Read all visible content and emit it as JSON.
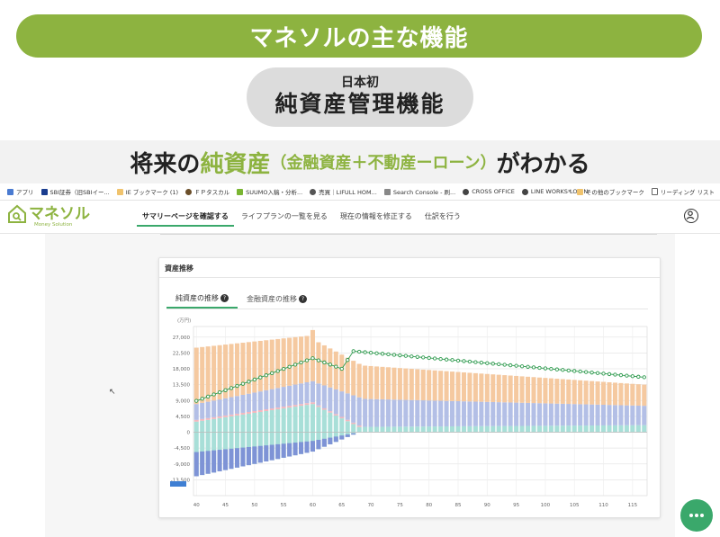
{
  "banner": {
    "title": "マネソルの主な機能"
  },
  "pill": {
    "small": "日本初",
    "big": "純資産管理機能"
  },
  "headline": {
    "pre": "将来の",
    "highlight": "純資産",
    "paren": "（金融資産＋不動産ーローン）",
    "post": "がわかる"
  },
  "bookmarks": {
    "items": [
      {
        "label": "アプリ",
        "color": "#4a7bd1"
      },
      {
        "label": "SBI証券（旧SBIイー...",
        "color": "#1a3d8f"
      },
      {
        "label": "IE ブックマーク (1)",
        "color": "#f0c36d"
      },
      {
        "label": "ＦＰタスカル",
        "color": "#6b4f2a"
      },
      {
        "label": "SUUMO入稿・分析...",
        "color": "#7ab532"
      },
      {
        "label": "売買｜LIFULL HOM...",
        "color": "#555555"
      },
      {
        "label": "Search Console - 刷...",
        "color": "#888888"
      },
      {
        "label": "CROSS OFFICE",
        "color": "#444444"
      },
      {
        "label": "LINE WORKS LOGIN",
        "color": "#444444"
      }
    ],
    "right": [
      {
        "label": "その他のブックマーク",
        "color": "#f0c36d"
      },
      {
        "label": "リーディング リスト",
        "color": "#666666"
      }
    ],
    "overflow": "»"
  },
  "app": {
    "logo_name": "マネソル",
    "logo_sub": "Money Solution"
  },
  "nav": {
    "items": [
      "サマリーページを確認する",
      "ライフプランの一覧を見る",
      "現在の情報を修正する",
      "仕訳を行う"
    ]
  },
  "card": {
    "title": "資産推移"
  },
  "tabs": [
    {
      "label": "純資産の推移",
      "help": "?"
    },
    {
      "label": "金融資産の推移",
      "help": "?"
    }
  ],
  "colors": {
    "accent": "#3aa86b",
    "brand": "#8db340",
    "orange": "#f5c9a0",
    "blue": "#b3bfe6",
    "pink": "#f2b8be",
    "teal": "#a8dfd8",
    "darkblue": "#7e93d6",
    "line": "#2e9a4e"
  },
  "chart_data": {
    "type": "bar",
    "unit": "(万円)",
    "ylim": [
      -18000,
      30000
    ],
    "yticks": [
      27000,
      22500,
      18000,
      13500,
      9000,
      4500,
      0,
      -4500,
      -9000,
      -13500
    ],
    "ytick_labels": [
      "27,000",
      "22,500",
      "18,000",
      "13,500",
      "9,000",
      "4,500",
      "0",
      "-4,500",
      "-9,000",
      "-13,500"
    ],
    "xticks": [
      40,
      45,
      50,
      55,
      60,
      65,
      70,
      75,
      80,
      85,
      90,
      95,
      100,
      105,
      110,
      115
    ],
    "xtick_labels": [
      "40",
      "45",
      "50",
      "55",
      "60",
      "65",
      "70",
      "75",
      "80",
      "85",
      "90",
      "95",
      "100",
      "105",
      "110",
      "115"
    ],
    "x_start": 40,
    "x_end": 117,
    "net_assets_start": 8900,
    "net_assets_end": 15600,
    "legend_marker": ""
  }
}
